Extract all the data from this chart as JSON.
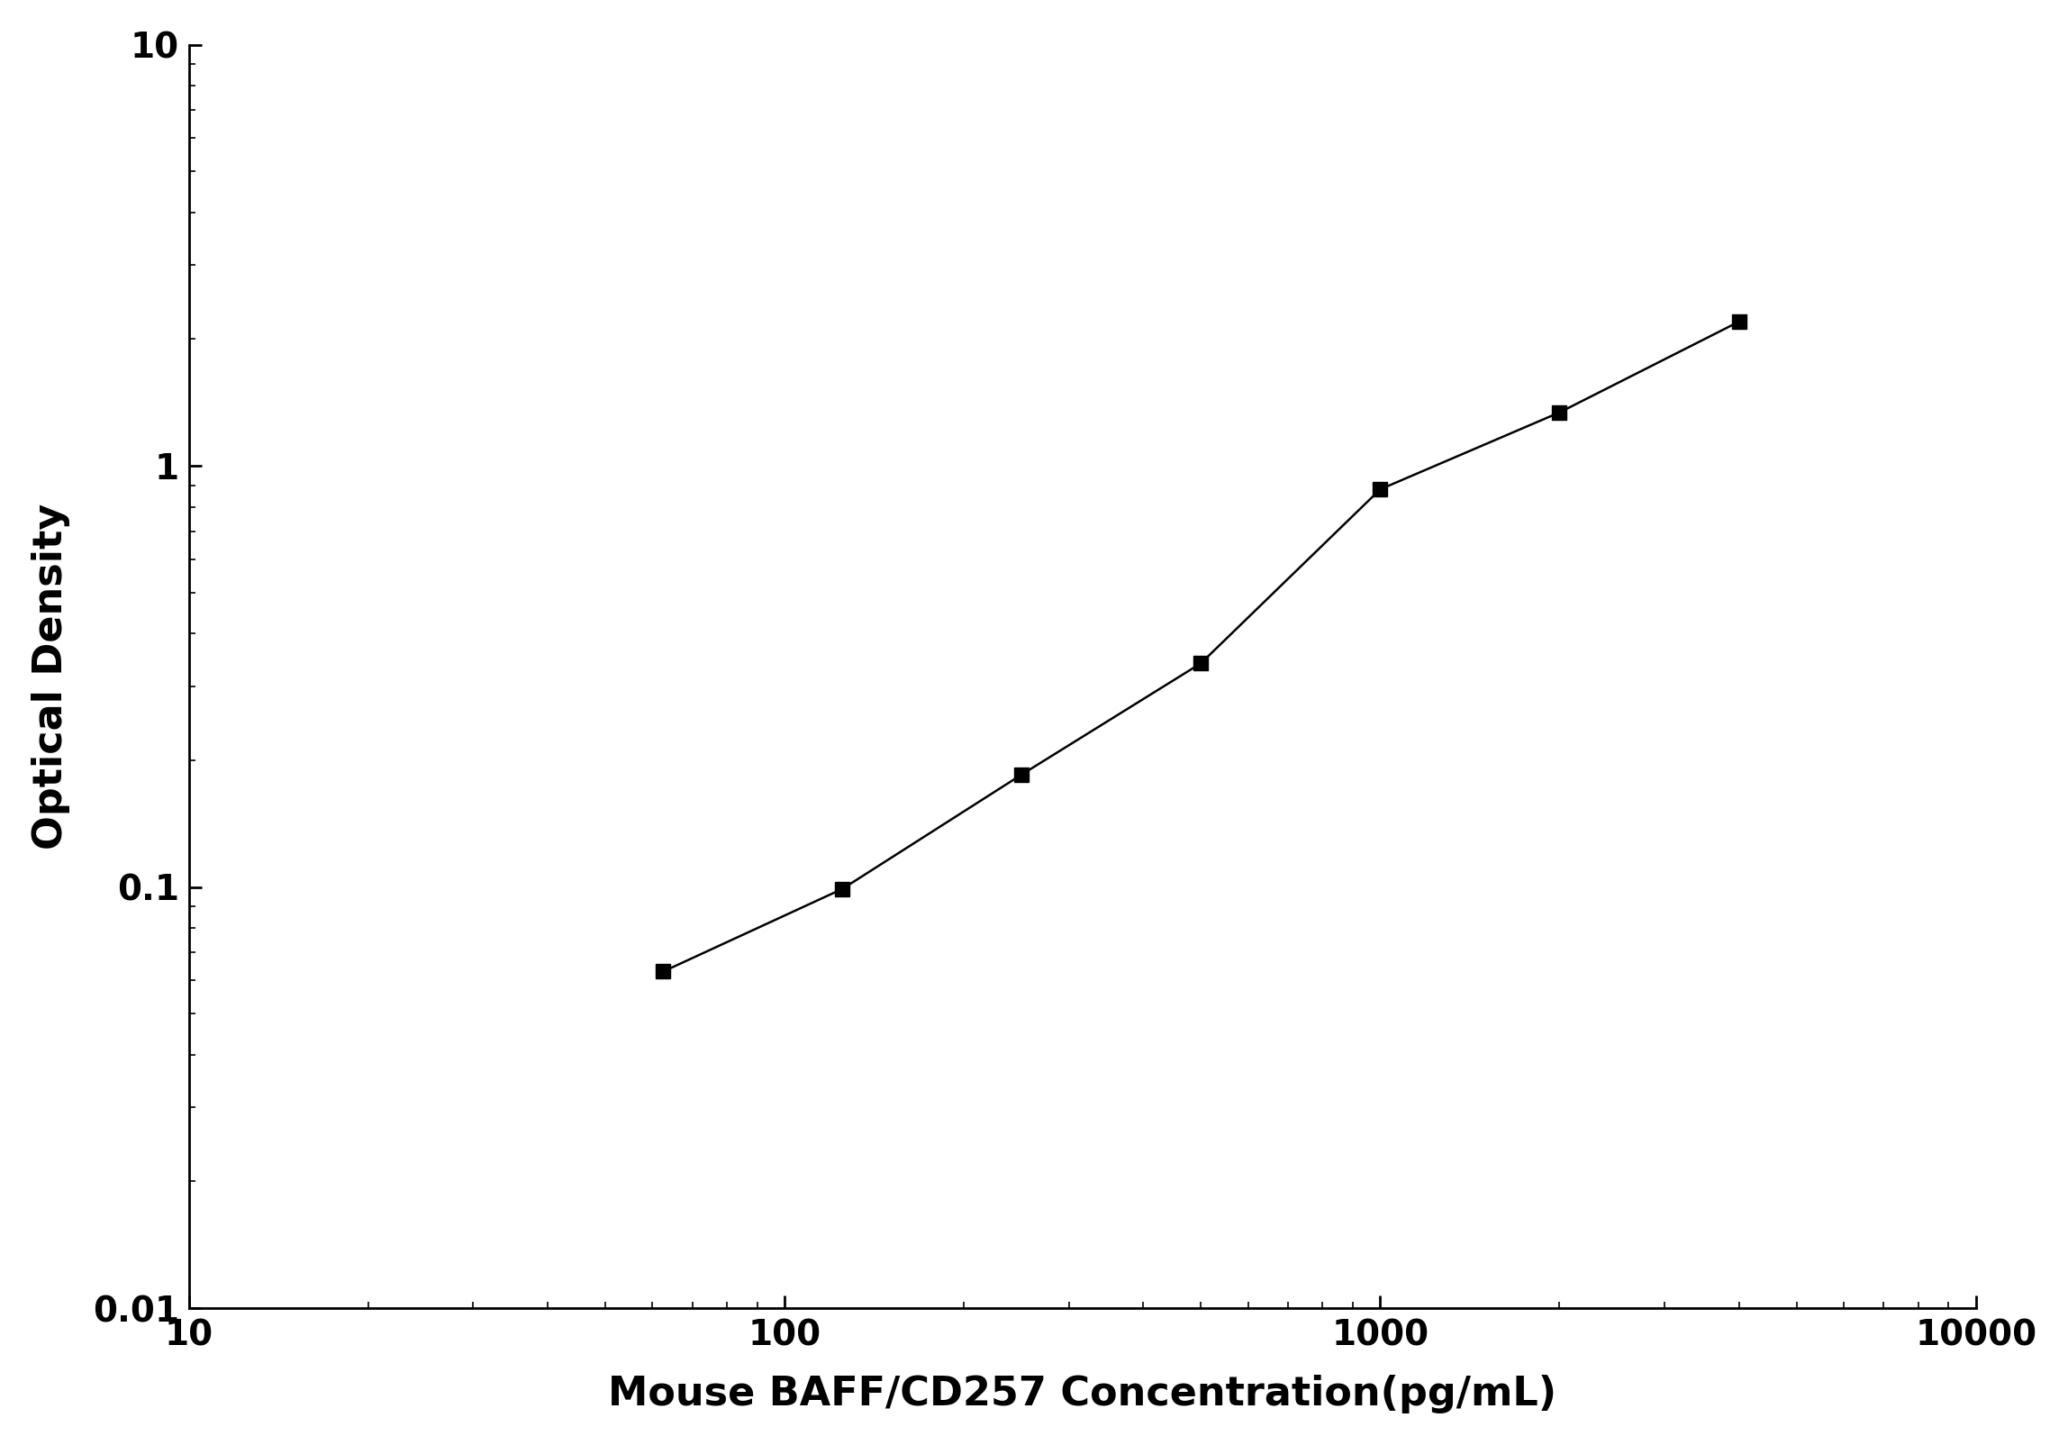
{
  "x": [
    62.5,
    125,
    250,
    500,
    1000,
    2000,
    4000
  ],
  "y": [
    0.063,
    0.099,
    0.185,
    0.34,
    0.88,
    1.34,
    2.2
  ],
  "xlim": [
    10,
    10000
  ],
  "ylim": [
    0.01,
    10
  ],
  "xlabel": "Mouse BAFF/CD257 Concentration(pg/mL)",
  "ylabel": "Optical Density",
  "line_color": "#000000",
  "marker": "s",
  "marker_color": "#000000",
  "marker_size": 12,
  "line_width": 1.8,
  "background_color": "#ffffff",
  "xlabel_fontsize": 32,
  "ylabel_fontsize": 32,
  "tick_fontsize": 28,
  "x_ticks": [
    10,
    100,
    1000,
    10000
  ],
  "x_tick_labels": [
    "10",
    "100",
    "1000",
    "10000"
  ],
  "y_ticks": [
    0.01,
    0.1,
    1,
    10
  ],
  "y_tick_labels": [
    "0.01",
    "0.1",
    "1",
    "10"
  ]
}
